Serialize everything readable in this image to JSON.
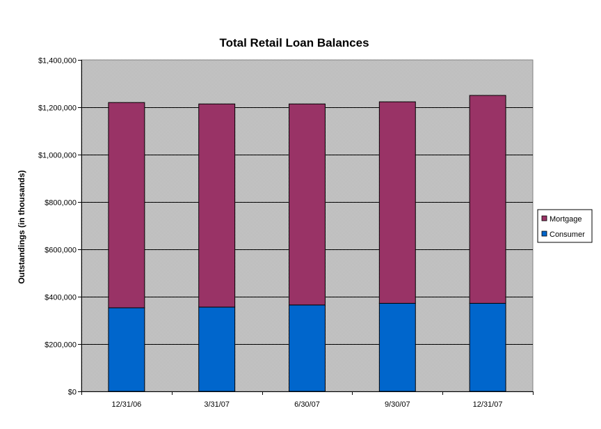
{
  "chart_data": {
    "type": "bar",
    "stacked": true,
    "title": "Total Retail Loan Balances",
    "xlabel": "",
    "ylabel": "Outstandings (in thousands)",
    "categories": [
      "12/31/06",
      "3/31/07",
      "6/30/07",
      "9/30/07",
      "12/31/07"
    ],
    "series": [
      {
        "name": "Consumer",
        "color": "#0066CC",
        "values": [
          353000,
          356000,
          365000,
          372000,
          372000
        ]
      },
      {
        "name": "Mortgage",
        "color": "#993366",
        "values": [
          867000,
          858000,
          849000,
          851000,
          878000
        ]
      }
    ],
    "ylim": [
      0,
      1400000
    ],
    "yticks": [
      0,
      200000,
      400000,
      600000,
      800000,
      1000000,
      1200000,
      1400000
    ],
    "ytick_labels": [
      "$0",
      "$200,000",
      "$400,000",
      "$600,000",
      "$800,000",
      "$1,000,000",
      "$1,200,000",
      "$1,400,000"
    ],
    "grid": true,
    "legend": {
      "position": "right",
      "entries": [
        "Mortgage",
        "Consumer"
      ]
    },
    "plot_background": "#c0c0c0"
  }
}
